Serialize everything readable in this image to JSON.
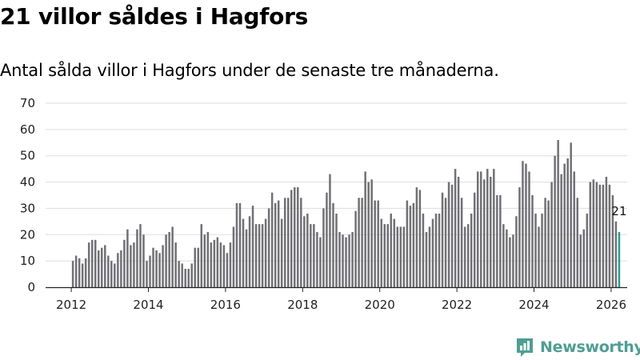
{
  "title": "21 villor såldes i Hagfors",
  "subtitle": "Antal sålda villor i Hagfors under de senaste tre månaderna.",
  "brand": "Newsworthy",
  "colors": {
    "bar": "#717075",
    "highlight": "#2a9d8f",
    "brand": "#4f9e94",
    "grid": "#dddddd"
  },
  "chart_data": {
    "type": "bar",
    "title": "21 villor såldes i Hagfors",
    "subtitle": "Antal sålda villor i Hagfors under de senaste tre månaderna.",
    "xlabel": "",
    "ylabel": "",
    "x_start": "2012-01",
    "x_interval": "month",
    "xlim": [
      "2011-07",
      "2026-06"
    ],
    "xticks": [
      "2012",
      "2014",
      "2016",
      "2018",
      "2020",
      "2022",
      "2024",
      "2026"
    ],
    "ylim": [
      0,
      70
    ],
    "yticks": [
      "0",
      "10",
      "20",
      "30",
      "40",
      "50",
      "60",
      "70"
    ],
    "grid": true,
    "legend": "none",
    "values": [
      10,
      12,
      11,
      9,
      11,
      17,
      18,
      18,
      14,
      15,
      16,
      12,
      10,
      9,
      13,
      14,
      18,
      22,
      16,
      17,
      22,
      24,
      20,
      10,
      12,
      15,
      14,
      13,
      16,
      20,
      21,
      23,
      17,
      10,
      9,
      7,
      7,
      9,
      15,
      15,
      24,
      20,
      21,
      17,
      18,
      19,
      17,
      16,
      13,
      17,
      23,
      32,
      32,
      26,
      22,
      27,
      31,
      24,
      24,
      24,
      26,
      30,
      36,
      32,
      33,
      26,
      34,
      34,
      37,
      38,
      38,
      34,
      27,
      28,
      24,
      24,
      21,
      19,
      30,
      36,
      43,
      32,
      28,
      21,
      20,
      19,
      20,
      21,
      29,
      34,
      34,
      44,
      40,
      41,
      33,
      33,
      26,
      24,
      24,
      28,
      26,
      23,
      23,
      23,
      33,
      31,
      32,
      38,
      37,
      28,
      21,
      23,
      26,
      28,
      28,
      36,
      34,
      40,
      39,
      45,
      42,
      34,
      23,
      24,
      28,
      36,
      44,
      44,
      41,
      45,
      42,
      45,
      35,
      35,
      24,
      22,
      19,
      20,
      27,
      38,
      48,
      47,
      44,
      35,
      28,
      23,
      28,
      34,
      33,
      40,
      50,
      56,
      43,
      47,
      49,
      55,
      44,
      34,
      20,
      22,
      28,
      40,
      41,
      40,
      39,
      39,
      42,
      39,
      35,
      25,
      21
    ],
    "highlight_last": true,
    "annotation": "21"
  }
}
